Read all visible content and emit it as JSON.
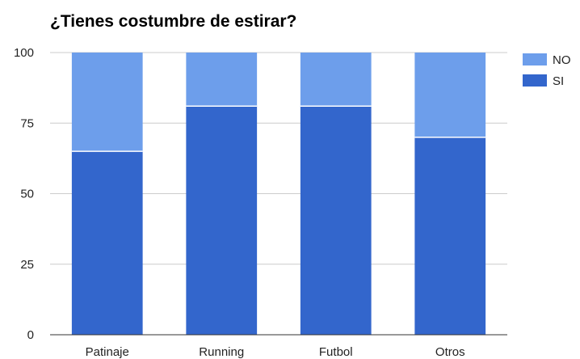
{
  "chart_data": {
    "type": "bar",
    "stacked": true,
    "title": "¿Tienes costumbre de estirar?",
    "xlabel": "",
    "ylabel": "",
    "categories": [
      "Patinaje",
      "Running",
      "Futbol",
      "Otros"
    ],
    "series": [
      {
        "name": "SI",
        "values": [
          65,
          81,
          81,
          70
        ],
        "color": "#3366cc"
      },
      {
        "name": "NO",
        "values": [
          35,
          19,
          19,
          30
        ],
        "color": "#6d9eeb"
      }
    ],
    "ylim": [
      0,
      100
    ],
    "yticks": [
      0,
      25,
      50,
      75,
      100
    ],
    "grid": true,
    "legend": {
      "position": "right",
      "order": [
        "NO",
        "SI"
      ]
    }
  }
}
